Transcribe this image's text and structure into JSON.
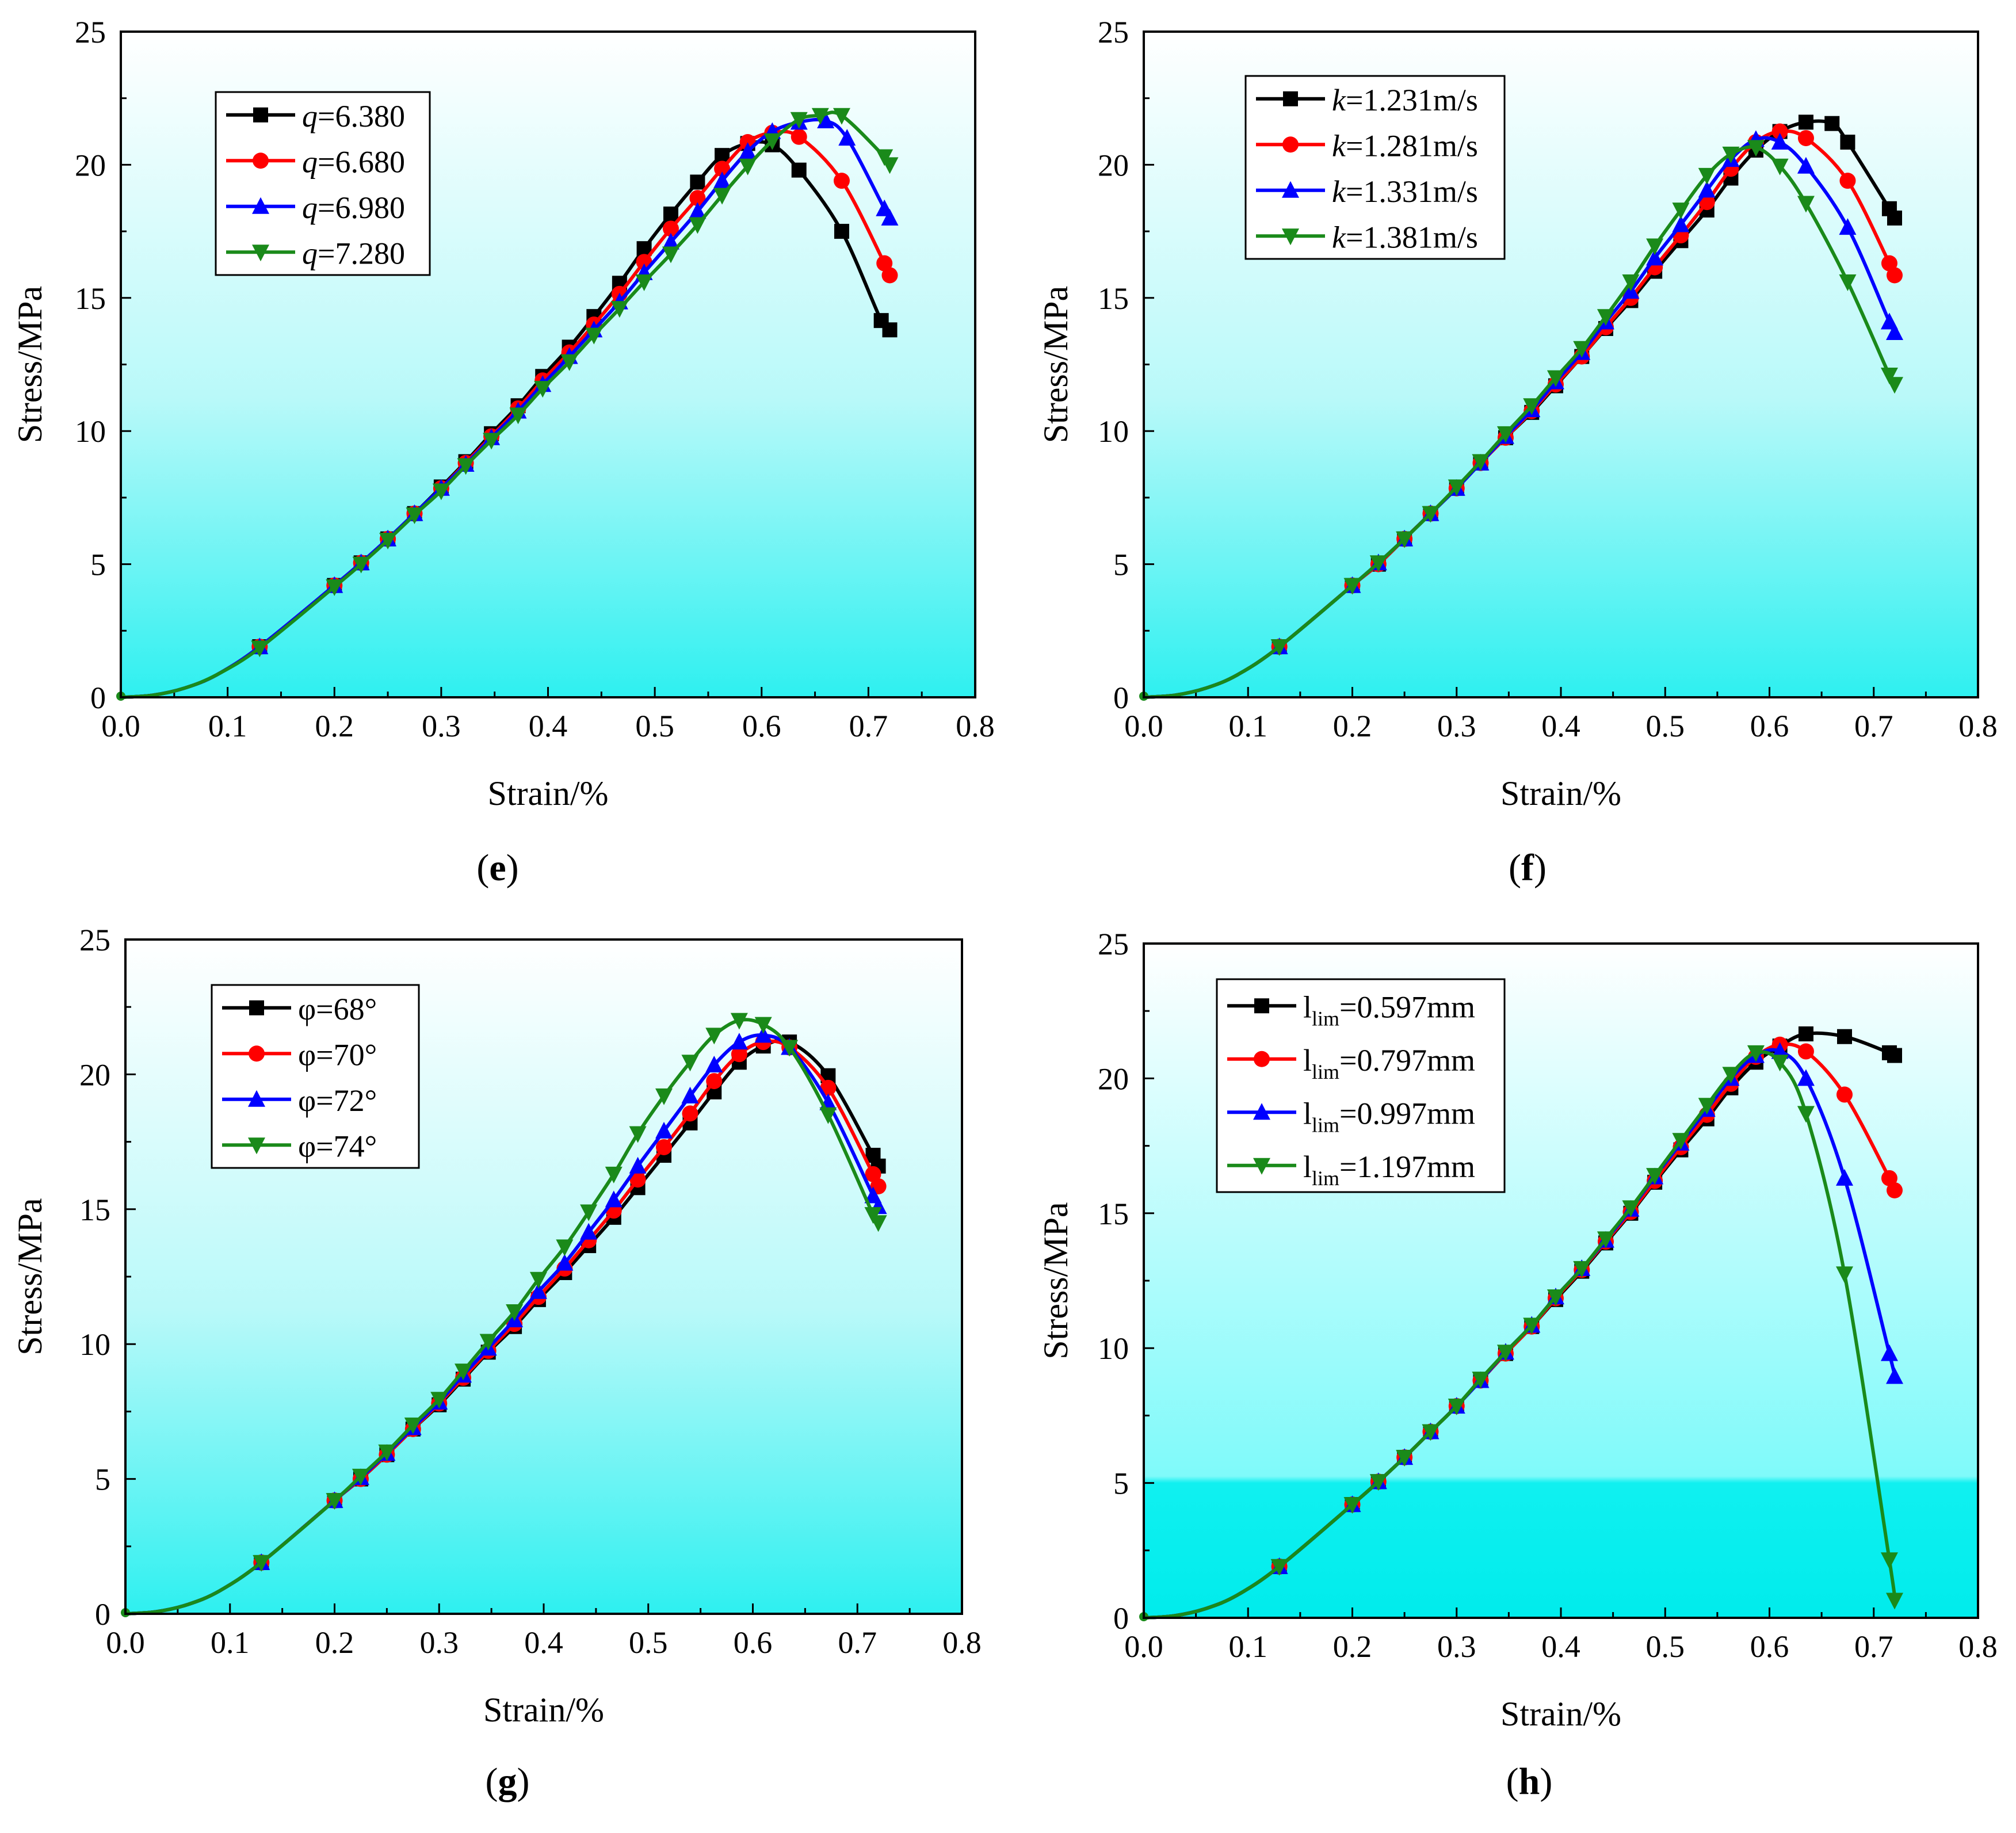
{
  "chart_data": [
    {
      "type": "line",
      "panel_label": "e",
      "xlabel": "Strain/%",
      "ylabel": "Stress/MPa",
      "xlim": [
        0,
        0.8
      ],
      "ylim": [
        0,
        25
      ],
      "xticks": [
        "0.0",
        "0.1",
        "0.2",
        "0.3",
        "0.4",
        "0.5",
        "0.6",
        "0.7",
        "0.8"
      ],
      "yticks": [
        "0",
        "5",
        "10",
        "15",
        "20",
        "25"
      ],
      "legend": "top-left",
      "series": [
        {
          "var": "q",
          "label": "=6.380",
          "color": "#000000",
          "marker": "square",
          "x": [
            0.13,
            0.2,
            0.225,
            0.25,
            0.275,
            0.3,
            0.323,
            0.347,
            0.372,
            0.395,
            0.42,
            0.443,
            0.467,
            0.49,
            0.515,
            0.54,
            0.563,
            0.587,
            0.61,
            0.635,
            0.675,
            0.712,
            0.72
          ],
          "y": [
            1.9,
            4.2,
            5.05,
            5.95,
            6.9,
            7.9,
            8.85,
            9.9,
            10.95,
            12.05,
            13.15,
            14.3,
            15.55,
            16.85,
            18.15,
            19.35,
            20.35,
            20.8,
            20.75,
            19.8,
            17.5,
            14.15,
            13.8
          ]
        },
        {
          "var": "q",
          "label": "=6.680",
          "color": "#ff0000",
          "marker": "circle",
          "x": [
            0.13,
            0.2,
            0.225,
            0.25,
            0.275,
            0.3,
            0.323,
            0.347,
            0.372,
            0.395,
            0.42,
            0.443,
            0.467,
            0.49,
            0.515,
            0.54,
            0.563,
            0.587,
            0.61,
            0.635,
            0.675,
            0.715,
            0.72
          ],
          "y": [
            1.9,
            4.2,
            5.05,
            5.95,
            6.9,
            7.85,
            8.8,
            9.8,
            10.85,
            11.9,
            12.95,
            14.0,
            15.15,
            16.35,
            17.6,
            18.75,
            19.85,
            20.85,
            21.2,
            21.05,
            19.4,
            16.3,
            15.85
          ]
        },
        {
          "var": "q",
          "label": "=6.980",
          "color": "#0000ff",
          "marker": "triangle-up",
          "x": [
            0.13,
            0.2,
            0.225,
            0.25,
            0.275,
            0.3,
            0.323,
            0.347,
            0.372,
            0.395,
            0.42,
            0.443,
            0.467,
            0.49,
            0.515,
            0.54,
            0.563,
            0.587,
            0.61,
            0.635,
            0.66,
            0.68,
            0.715,
            0.72
          ],
          "y": [
            1.9,
            4.2,
            5.05,
            5.95,
            6.9,
            7.85,
            8.75,
            9.75,
            10.75,
            11.75,
            12.8,
            13.8,
            14.85,
            15.95,
            17.1,
            18.25,
            19.4,
            20.5,
            21.25,
            21.6,
            21.65,
            21.0,
            18.35,
            18.0
          ]
        },
        {
          "var": "q",
          "label": "=7.280",
          "color": "#1a8a1a",
          "marker": "triangle-down",
          "x": [
            0.13,
            0.2,
            0.225,
            0.25,
            0.275,
            0.3,
            0.323,
            0.347,
            0.372,
            0.395,
            0.42,
            0.443,
            0.467,
            0.49,
            0.515,
            0.54,
            0.563,
            0.587,
            0.61,
            0.635,
            0.655,
            0.675,
            0.715,
            0.72
          ],
          "y": [
            1.85,
            4.15,
            5.0,
            5.9,
            6.85,
            7.75,
            8.7,
            9.65,
            10.6,
            11.6,
            12.6,
            13.6,
            14.6,
            15.6,
            16.65,
            17.75,
            18.85,
            19.95,
            20.9,
            21.7,
            21.85,
            21.85,
            20.3,
            20.0
          ]
        }
      ]
    },
    {
      "type": "line",
      "panel_label": "f",
      "xlabel": "Strain/%",
      "ylabel": "Stress/MPa",
      "xlim": [
        0,
        0.8
      ],
      "ylim": [
        0,
        25
      ],
      "xticks": [
        "0.0",
        "0.1",
        "0.2",
        "0.3",
        "0.4",
        "0.5",
        "0.6",
        "0.7",
        "0.8"
      ],
      "yticks": [
        "0",
        "5",
        "10",
        "15",
        "20",
        "25"
      ],
      "legend": "top-left",
      "series": [
        {
          "var": "k",
          "label": "=1.231m/s",
          "color": "#000000",
          "marker": "square",
          "x": [
            0.13,
            0.2,
            0.225,
            0.25,
            0.275,
            0.3,
            0.323,
            0.347,
            0.372,
            0.395,
            0.42,
            0.443,
            0.467,
            0.49,
            0.515,
            0.54,
            0.563,
            0.587,
            0.61,
            0.635,
            0.66,
            0.675,
            0.715,
            0.72
          ],
          "y": [
            1.9,
            4.2,
            5.0,
            5.95,
            6.9,
            7.85,
            8.8,
            9.75,
            10.7,
            11.7,
            12.8,
            13.85,
            14.9,
            16.0,
            17.15,
            18.3,
            19.5,
            20.55,
            21.25,
            21.6,
            21.55,
            20.85,
            18.35,
            18.0
          ]
        },
        {
          "var": "k",
          "label": "=1.281m/s",
          "color": "#ff0000",
          "marker": "circle",
          "x": [
            0.13,
            0.2,
            0.225,
            0.25,
            0.275,
            0.3,
            0.323,
            0.347,
            0.372,
            0.395,
            0.42,
            0.443,
            0.467,
            0.49,
            0.515,
            0.54,
            0.563,
            0.587,
            0.61,
            0.635,
            0.675,
            0.715,
            0.72
          ],
          "y": [
            1.9,
            4.2,
            5.0,
            5.95,
            6.9,
            7.85,
            8.8,
            9.75,
            10.75,
            11.75,
            12.8,
            13.9,
            15.0,
            16.15,
            17.35,
            18.6,
            19.85,
            20.85,
            21.25,
            21.0,
            19.4,
            16.3,
            15.85
          ]
        },
        {
          "var": "k",
          "label": "=1.331m/s",
          "color": "#0000ff",
          "marker": "triangle-up",
          "x": [
            0.13,
            0.2,
            0.225,
            0.25,
            0.275,
            0.3,
            0.323,
            0.347,
            0.372,
            0.395,
            0.42,
            0.443,
            0.467,
            0.49,
            0.515,
            0.54,
            0.563,
            0.587,
            0.61,
            0.635,
            0.675,
            0.715,
            0.72
          ],
          "y": [
            1.9,
            4.2,
            5.05,
            5.95,
            6.9,
            7.85,
            8.8,
            9.8,
            10.8,
            11.85,
            12.95,
            14.1,
            15.25,
            16.5,
            17.75,
            19.05,
            20.2,
            20.95,
            20.85,
            19.95,
            17.65,
            14.1,
            13.7
          ]
        },
        {
          "var": "k",
          "label": "=1.381m/s",
          "color": "#1a8a1a",
          "marker": "triangle-down",
          "x": [
            0.13,
            0.2,
            0.225,
            0.25,
            0.275,
            0.3,
            0.323,
            0.347,
            0.372,
            0.395,
            0.42,
            0.443,
            0.467,
            0.49,
            0.515,
            0.54,
            0.563,
            0.587,
            0.61,
            0.635,
            0.675,
            0.715,
            0.72
          ],
          "y": [
            1.9,
            4.2,
            5.05,
            5.95,
            6.9,
            7.9,
            8.85,
            9.9,
            10.95,
            12.0,
            13.1,
            14.3,
            15.6,
            16.95,
            18.3,
            19.6,
            20.4,
            20.65,
            19.95,
            18.55,
            15.6,
            12.1,
            11.75
          ]
        }
      ]
    },
    {
      "type": "line",
      "panel_label": "g",
      "xlabel": "Strain/%",
      "ylabel": "Stress/MPa",
      "xlim": [
        0,
        0.8
      ],
      "ylim": [
        0,
        25
      ],
      "xticks": [
        "0.0",
        "0.1",
        "0.2",
        "0.3",
        "0.4",
        "0.5",
        "0.6",
        "0.7",
        "0.8"
      ],
      "yticks": [
        "0",
        "5",
        "10",
        "15",
        "20",
        "25"
      ],
      "legend": "top-left",
      "series": [
        {
          "var": "",
          "label": "φ=68°",
          "color": "#000000",
          "marker": "square",
          "x": [
            0.13,
            0.2,
            0.225,
            0.25,
            0.275,
            0.3,
            0.323,
            0.347,
            0.372,
            0.395,
            0.42,
            0.443,
            0.467,
            0.49,
            0.515,
            0.54,
            0.563,
            0.587,
            0.61,
            0.635,
            0.672,
            0.715,
            0.72
          ],
          "y": [
            1.9,
            4.2,
            5.0,
            5.9,
            6.85,
            7.75,
            8.7,
            9.7,
            10.65,
            11.65,
            12.65,
            13.65,
            14.7,
            15.8,
            17.0,
            18.2,
            19.35,
            20.45,
            21.05,
            21.2,
            19.95,
            17.0,
            16.6
          ]
        },
        {
          "var": "",
          "label": "φ=70°",
          "color": "#ff0000",
          "marker": "circle",
          "x": [
            0.13,
            0.2,
            0.225,
            0.25,
            0.275,
            0.3,
            0.323,
            0.347,
            0.372,
            0.395,
            0.42,
            0.443,
            0.467,
            0.49,
            0.515,
            0.54,
            0.563,
            0.587,
            0.61,
            0.635,
            0.672,
            0.715,
            0.72
          ],
          "y": [
            1.9,
            4.2,
            5.0,
            5.9,
            6.85,
            7.8,
            8.75,
            9.75,
            10.75,
            11.75,
            12.8,
            13.85,
            14.95,
            16.1,
            17.3,
            18.55,
            19.75,
            20.75,
            21.2,
            21.0,
            19.5,
            16.3,
            15.85
          ]
        },
        {
          "var": "",
          "label": "φ=72°",
          "color": "#0000ff",
          "marker": "triangle-up",
          "x": [
            0.13,
            0.2,
            0.225,
            0.25,
            0.275,
            0.3,
            0.323,
            0.347,
            0.372,
            0.395,
            0.42,
            0.443,
            0.467,
            0.49,
            0.515,
            0.54,
            0.563,
            0.587,
            0.61,
            0.635,
            0.672,
            0.715,
            0.72
          ],
          "y": [
            1.9,
            4.2,
            5.05,
            5.95,
            6.9,
            7.85,
            8.85,
            9.85,
            10.9,
            11.95,
            13.0,
            14.15,
            15.35,
            16.6,
            17.9,
            19.2,
            20.35,
            21.2,
            21.45,
            21.0,
            18.95,
            15.5,
            15.1
          ]
        },
        {
          "var": "",
          "label": "φ=74°",
          "color": "#1a8a1a",
          "marker": "triangle-down",
          "x": [
            0.13,
            0.2,
            0.225,
            0.25,
            0.275,
            0.3,
            0.323,
            0.347,
            0.372,
            0.395,
            0.42,
            0.443,
            0.467,
            0.49,
            0.515,
            0.54,
            0.563,
            0.587,
            0.61,
            0.635,
            0.672,
            0.715,
            0.72
          ],
          "y": [
            1.9,
            4.2,
            5.1,
            6.0,
            7.0,
            7.95,
            9.0,
            10.1,
            11.2,
            12.4,
            13.6,
            14.9,
            16.3,
            17.8,
            19.2,
            20.45,
            21.45,
            22.0,
            21.85,
            21.0,
            18.5,
            14.8,
            14.5
          ]
        }
      ]
    },
    {
      "type": "line",
      "panel_label": "h",
      "xlabel": "Strain/%",
      "ylabel": "Stress/MPa",
      "xlim": [
        0,
        0.8
      ],
      "ylim": [
        0,
        25
      ],
      "xticks": [
        "0.0",
        "0.1",
        "0.2",
        "0.3",
        "0.4",
        "0.5",
        "0.6",
        "0.7",
        "0.8"
      ],
      "yticks": [
        "0",
        "5",
        "10",
        "15",
        "20",
        "25"
      ],
      "legend": "top-left",
      "series": [
        {
          "var": "l",
          "sub": "lim",
          "label": "=0.597mm",
          "color": "#000000",
          "marker": "square",
          "x": [
            0.13,
            0.2,
            0.225,
            0.25,
            0.275,
            0.3,
            0.323,
            0.347,
            0.372,
            0.395,
            0.42,
            0.443,
            0.467,
            0.49,
            0.515,
            0.54,
            0.563,
            0.587,
            0.61,
            0.635,
            0.672,
            0.715,
            0.72
          ],
          "y": [
            1.9,
            4.2,
            5.05,
            5.95,
            6.9,
            7.85,
            8.8,
            9.8,
            10.8,
            11.8,
            12.85,
            13.9,
            15.0,
            16.15,
            17.35,
            18.5,
            19.65,
            20.6,
            21.2,
            21.65,
            21.55,
            20.95,
            20.85
          ]
        },
        {
          "var": "l",
          "sub": "lim",
          "label": "=0.797mm",
          "color": "#ff0000",
          "marker": "circle",
          "x": [
            0.13,
            0.2,
            0.225,
            0.25,
            0.275,
            0.3,
            0.323,
            0.347,
            0.372,
            0.395,
            0.42,
            0.443,
            0.467,
            0.49,
            0.515,
            0.54,
            0.563,
            0.587,
            0.61,
            0.635,
            0.672,
            0.715,
            0.72
          ],
          "y": [
            1.9,
            4.2,
            5.05,
            5.95,
            6.9,
            7.85,
            8.8,
            9.8,
            10.8,
            11.85,
            12.9,
            13.95,
            15.05,
            16.2,
            17.45,
            18.65,
            19.8,
            20.8,
            21.25,
            21.0,
            19.4,
            16.3,
            15.85
          ]
        },
        {
          "var": "l",
          "sub": "lim",
          "label": "=0.997mm",
          "color": "#0000ff",
          "marker": "triangle-up",
          "x": [
            0.13,
            0.2,
            0.225,
            0.25,
            0.275,
            0.3,
            0.323,
            0.347,
            0.372,
            0.395,
            0.42,
            0.443,
            0.467,
            0.49,
            0.515,
            0.54,
            0.563,
            0.587,
            0.61,
            0.635,
            0.672,
            0.715,
            0.72
          ],
          "y": [
            1.9,
            4.2,
            5.05,
            5.95,
            6.9,
            7.85,
            8.8,
            9.85,
            10.85,
            11.9,
            12.95,
            14.0,
            15.15,
            16.35,
            17.6,
            18.85,
            20.0,
            20.85,
            21.0,
            20.0,
            16.3,
            9.8,
            8.95
          ]
        },
        {
          "var": "l",
          "sub": "lim",
          "label": "=1.197mm",
          "color": "#1a8a1a",
          "marker": "triangle-down",
          "x": [
            0.13,
            0.2,
            0.225,
            0.25,
            0.275,
            0.3,
            0.323,
            0.347,
            0.372,
            0.395,
            0.42,
            0.443,
            0.467,
            0.49,
            0.515,
            0.54,
            0.563,
            0.587,
            0.61,
            0.635,
            0.672,
            0.715,
            0.72
          ],
          "y": [
            1.9,
            4.2,
            5.05,
            5.95,
            6.9,
            7.85,
            8.85,
            9.85,
            10.85,
            11.9,
            12.95,
            14.05,
            15.2,
            16.4,
            17.7,
            19.0,
            20.15,
            20.95,
            20.6,
            18.7,
            12.75,
            2.15,
            0.65
          ]
        }
      ]
    }
  ]
}
